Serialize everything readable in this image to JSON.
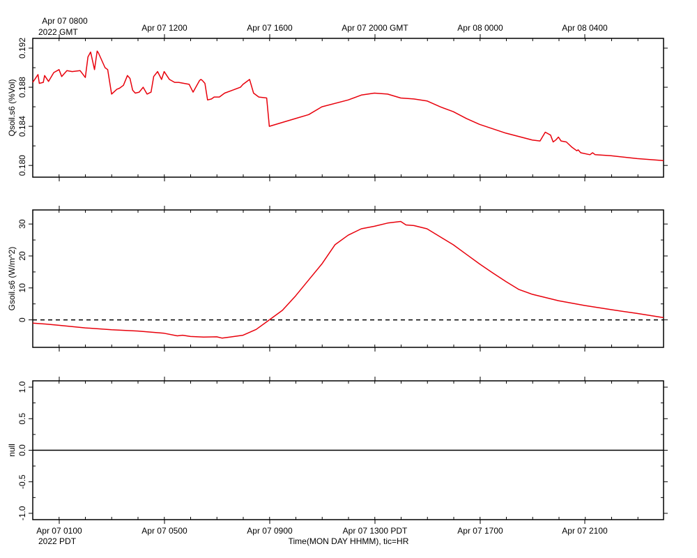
{
  "top_axis": {
    "labels": [
      "Apr 07 0800",
      "Apr 07 1200",
      "Apr 07 1600",
      "Apr 07 2000 GMT",
      "Apr 08 0000",
      "Apr 08 0400"
    ],
    "year_label": "2022 GMT"
  },
  "bottom_axis": {
    "labels": [
      "Apr 07 0100",
      "Apr 07 0500",
      "Apr 07 0900",
      "Apr 07 1300 PDT",
      "Apr 07 1700",
      "Apr 07 2100"
    ],
    "year_label": "2022 PDT",
    "title": "Time(MON DAY HHMM), tic=HR"
  },
  "colors": {
    "series": "#e8000b",
    "axis": "#000000",
    "zero_line": "#000000"
  },
  "chart_data": [
    {
      "type": "line",
      "ylabel": "Qsoil.s6 (%Vol)",
      "ylim": [
        0.1788,
        0.193
      ],
      "yticks": [
        0.18,
        0.184,
        0.188,
        0.192
      ],
      "ytick_labels": [
        "0.180",
        "0.184",
        "0.188",
        "0.192"
      ],
      "xlim": [
        0.0,
        24.0
      ],
      "x_unit": "hours after Apr 07 0000 PDT",
      "series": [
        {
          "x": [
            0.0,
            0.2,
            0.25,
            0.4,
            0.45,
            0.6,
            0.8,
            1.0,
            1.1,
            1.3,
            1.5,
            1.8,
            2.0,
            2.1,
            2.2,
            2.35,
            2.45,
            2.5,
            2.75,
            2.85,
            3.0,
            3.2,
            3.3,
            3.45,
            3.6,
            3.7,
            3.8,
            3.9,
            4.05,
            4.2,
            4.35,
            4.5,
            4.6,
            4.75,
            4.9,
            5.0,
            5.2,
            5.4,
            5.55,
            5.75,
            5.95,
            6.1,
            6.35,
            6.4,
            6.45,
            6.55,
            6.65,
            6.8,
            6.9,
            7.1,
            7.3,
            7.6,
            7.9,
            8.0,
            8.1,
            8.25,
            8.4,
            8.6,
            8.9,
            9.0,
            9.5,
            10.0,
            10.5,
            11.0,
            12.0,
            12.5,
            13.0,
            13.5,
            14.0,
            14.5,
            15.0,
            15.5,
            16.0,
            16.5,
            17.0,
            18.0,
            19.0,
            19.3,
            19.5,
            19.7,
            19.8,
            19.9,
            20.0,
            20.1,
            20.3,
            20.5,
            20.7,
            20.75,
            20.85,
            21.2,
            21.3,
            21.4,
            22.0,
            23.0,
            24.0
          ],
          "y": [
            0.1885,
            0.1893,
            0.1884,
            0.1885,
            0.1892,
            0.1886,
            0.1895,
            0.1898,
            0.1891,
            0.1897,
            0.1896,
            0.1897,
            0.189,
            0.1911,
            0.1916,
            0.1898,
            0.1917,
            0.1915,
            0.19,
            0.1898,
            0.1873,
            0.1878,
            0.1879,
            0.1882,
            0.1892,
            0.1889,
            0.1877,
            0.1874,
            0.1875,
            0.188,
            0.1873,
            0.1875,
            0.1891,
            0.1896,
            0.1888,
            0.1896,
            0.1888,
            0.1885,
            0.1885,
            0.1884,
            0.1883,
            0.1875,
            0.1887,
            0.1888,
            0.1887,
            0.1884,
            0.1867,
            0.1868,
            0.187,
            0.187,
            0.1874,
            0.1877,
            0.188,
            0.1883,
            0.1885,
            0.1888,
            0.1874,
            0.187,
            0.1869,
            0.184,
            0.1844,
            0.1848,
            0.1852,
            0.186,
            0.1867,
            0.1872,
            0.1874,
            0.1873,
            0.1869,
            0.1868,
            0.1866,
            0.186,
            0.1855,
            0.1848,
            0.1842,
            0.1833,
            0.1826,
            0.1825,
            0.1834,
            0.1831,
            0.1824,
            0.1826,
            0.1829,
            0.1825,
            0.1824,
            0.1819,
            0.1815,
            0.1816,
            0.1813,
            0.1811,
            0.1813,
            0.1811,
            0.181,
            0.1807,
            0.1805
          ]
        }
      ]
    },
    {
      "type": "line",
      "ylabel": "Gsoil.s6 (W/m^2)",
      "ylim": [
        -8.6,
        34.4
      ],
      "yticks": [
        0,
        10,
        20,
        30
      ],
      "ytick_labels": [
        "0",
        "10",
        "20",
        "30"
      ],
      "xlim": [
        0.0,
        24.0
      ],
      "x_unit": "hours after Apr 07 0000 PDT",
      "zero_line": true,
      "series": [
        {
          "x": [
            0.0,
            0.5,
            1.0,
            1.5,
            2.0,
            3.0,
            4.0,
            5.0,
            5.5,
            5.7,
            6.0,
            6.5,
            7.0,
            7.2,
            7.5,
            8.0,
            8.5,
            9.0,
            9.5,
            10.0,
            10.5,
            11.0,
            11.5,
            12.0,
            12.5,
            13.0,
            13.5,
            14.0,
            14.2,
            14.5,
            15.0,
            15.5,
            16.0,
            16.5,
            17.0,
            17.5,
            18.0,
            18.5,
            19.0,
            20.0,
            21.0,
            22.0,
            23.0,
            24.0
          ],
          "y": [
            -1.0,
            -1.3,
            -1.7,
            -2.1,
            -2.5,
            -3.1,
            -3.5,
            -4.2,
            -5.0,
            -4.8,
            -5.2,
            -5.4,
            -5.3,
            -5.7,
            -5.4,
            -4.8,
            -3.0,
            0.0,
            3.0,
            7.5,
            12.5,
            17.5,
            23.5,
            26.5,
            28.5,
            29.3,
            30.3,
            30.8,
            29.7,
            29.5,
            28.5,
            26.0,
            23.5,
            20.5,
            17.5,
            14.7,
            12.0,
            9.5,
            8.0,
            6.0,
            4.5,
            3.2,
            2.0,
            0.7
          ]
        }
      ]
    },
    {
      "type": "line",
      "ylabel": "null",
      "ylim": [
        -1.1,
        1.1
      ],
      "yticks": [
        -1.0,
        -0.5,
        0.0,
        0.5,
        1.0
      ],
      "ytick_labels": [
        "-1.0",
        "-0.5",
        "0.0",
        "0.5",
        "1.0"
      ],
      "xlim": [
        0.0,
        24.0
      ],
      "x_unit": "hours after Apr 07 0000 PDT",
      "series": [
        {
          "x": [
            0.0,
            24.0
          ],
          "y": [
            0.0,
            0.0
          ]
        }
      ]
    }
  ]
}
